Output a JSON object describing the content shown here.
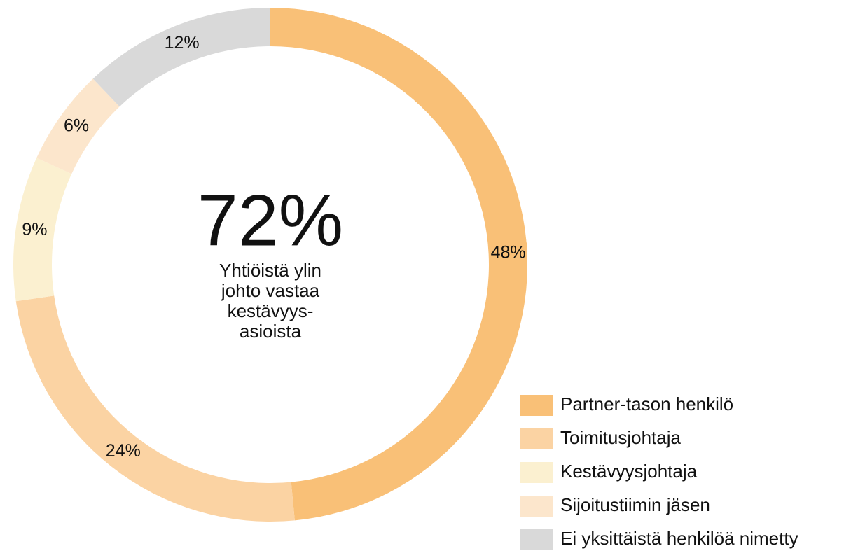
{
  "chart_data": {
    "type": "donut",
    "categories": [
      "Partner-tason henkilö",
      "Toimitusjohtaja",
      "Kestävyysjohtaja",
      "Sijoitustiimin jäsen",
      "Ei yksittäistä henkilöä nimetty"
    ],
    "values": [
      48,
      24,
      9,
      6,
      12
    ],
    "value_labels": [
      "48%",
      "24%",
      "9%",
      "6%",
      "12%"
    ],
    "colors": [
      "#f9c077",
      "#fbd3a3",
      "#fbf0d0",
      "#fce6cc",
      "#d9d9d9"
    ],
    "center_value": "72%",
    "center_text": [
      "Yhtiöistä ylin",
      "johto vastaa",
      "kestävyys-",
      "asioista"
    ],
    "legend": "bottom-right"
  }
}
